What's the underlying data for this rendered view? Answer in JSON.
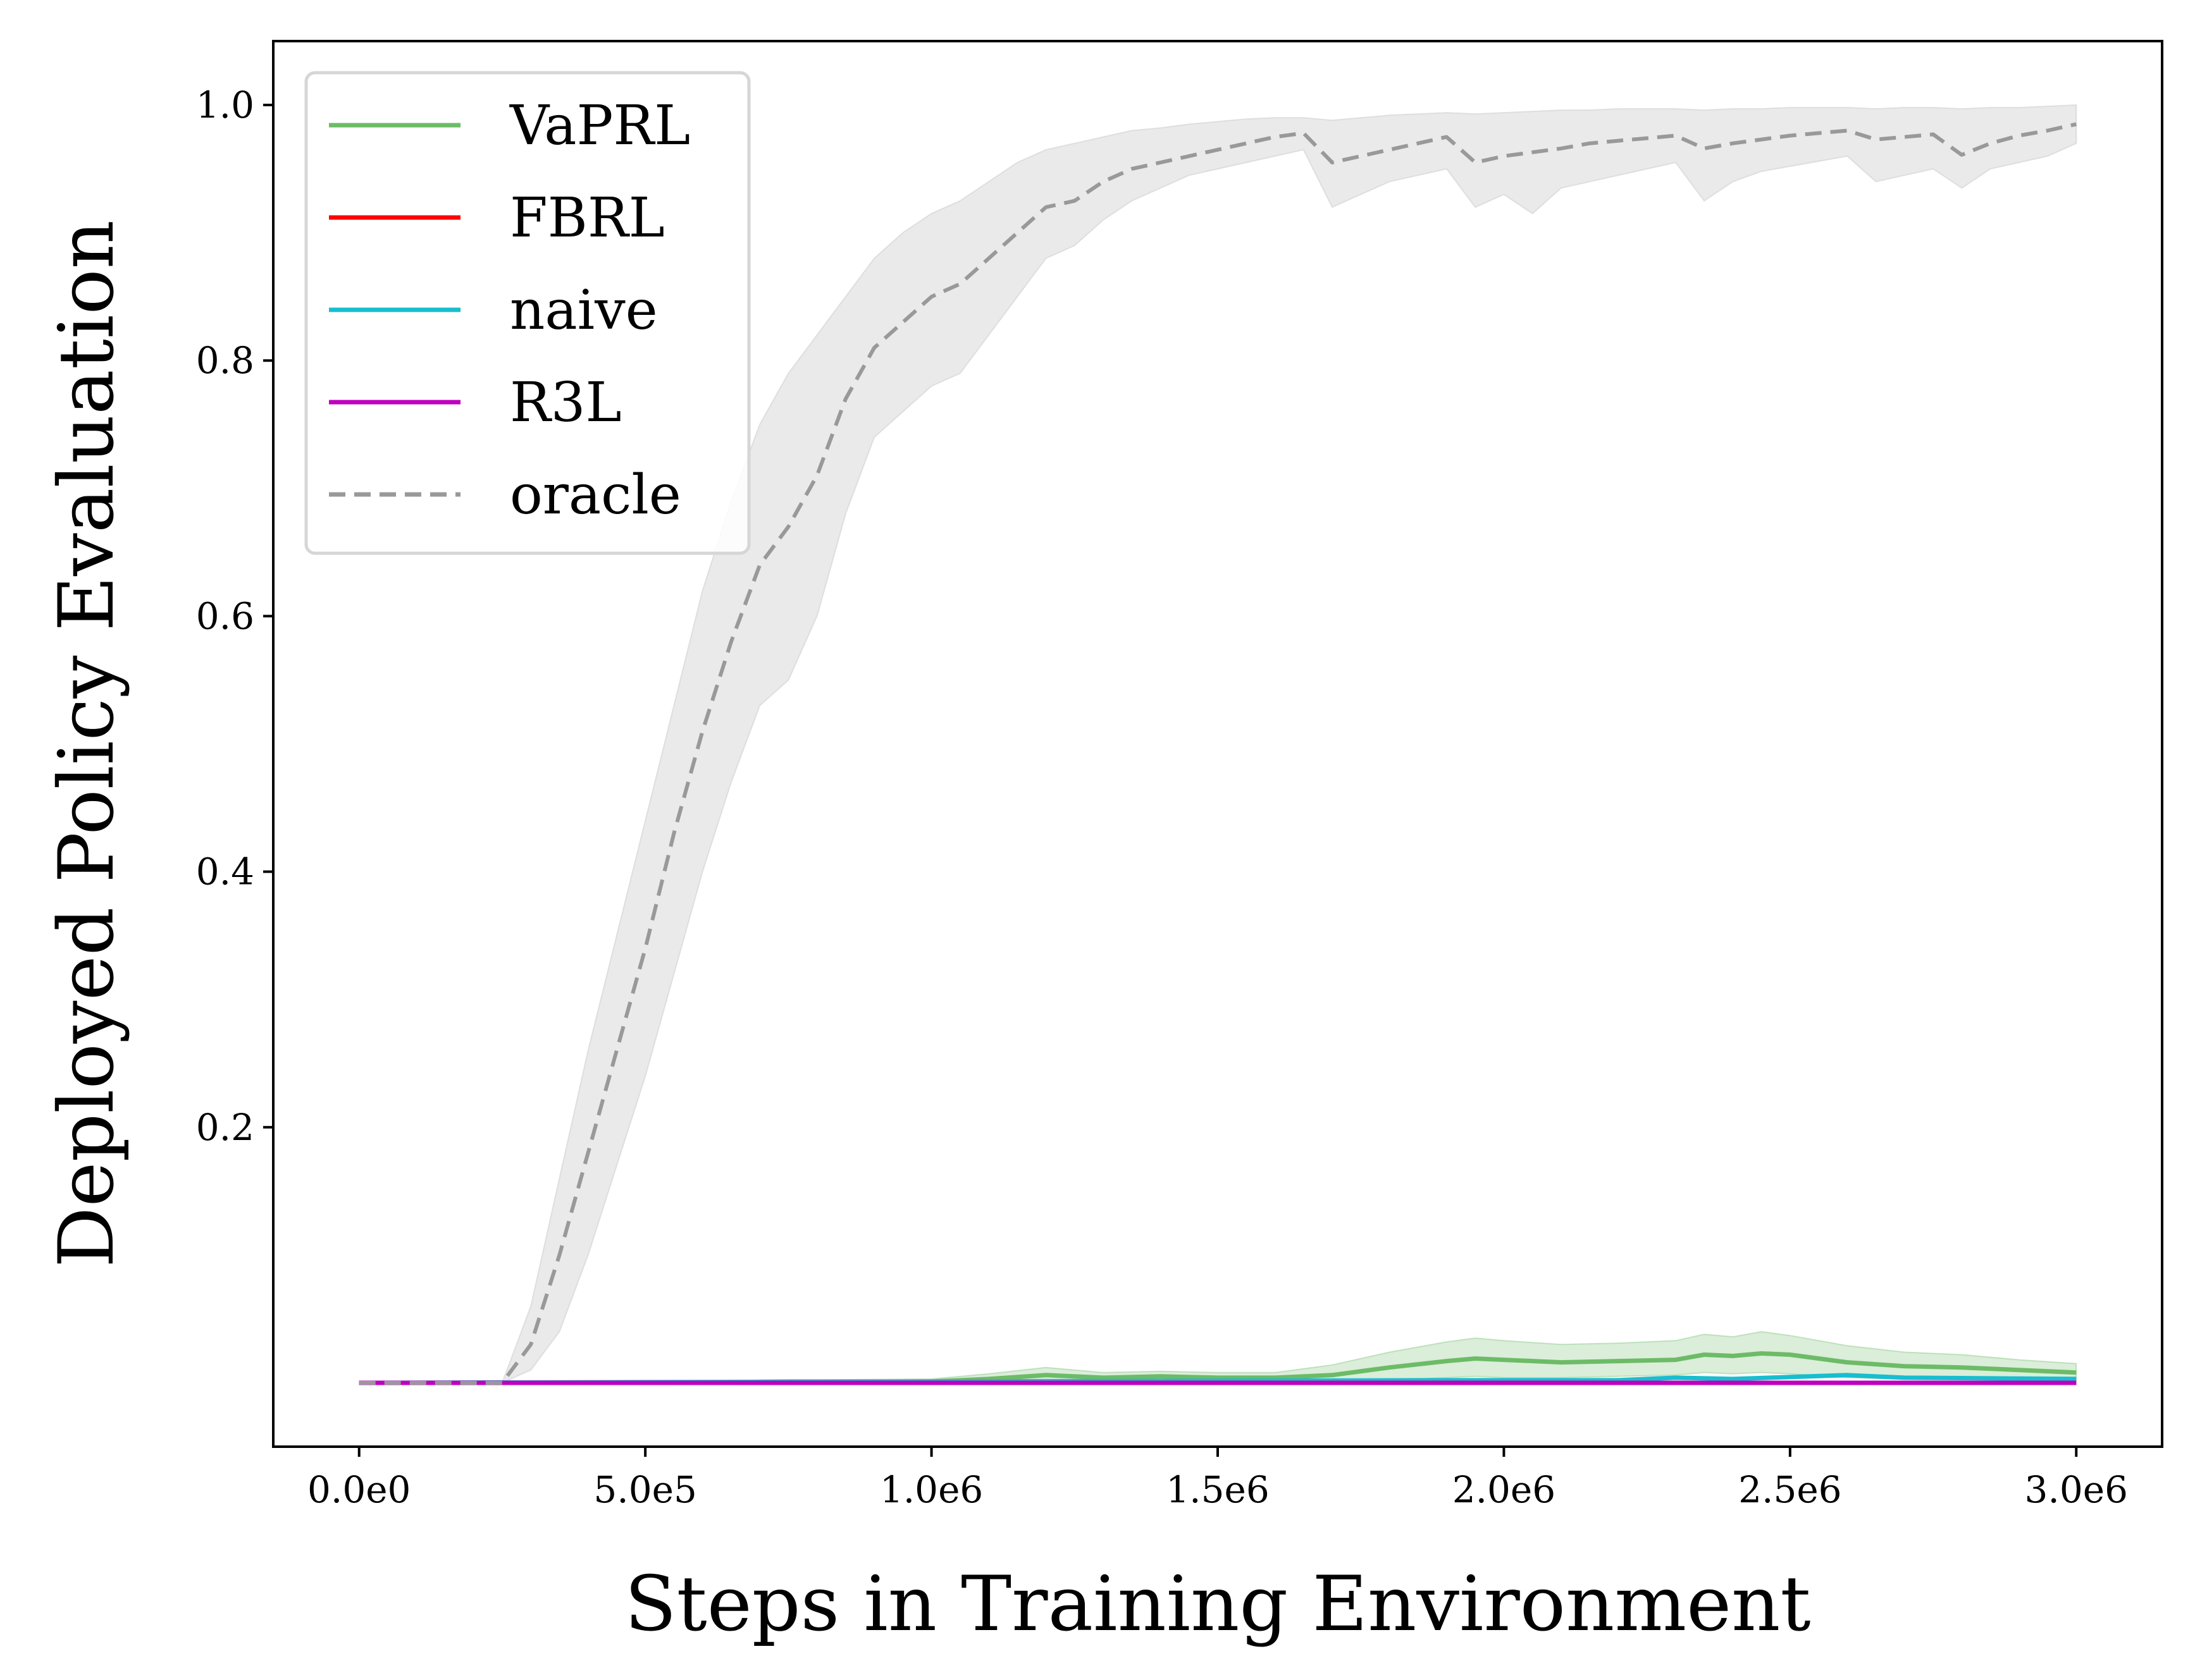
{
  "chart_data": {
    "type": "line",
    "xlabel": "Steps in Training Environment",
    "ylabel": "Deployed Policy Evaluation",
    "xlim": [
      -150000,
      3150000
    ],
    "ylim": [
      -0.05,
      1.05
    ],
    "xticks": [
      0,
      500000,
      1000000,
      1500000,
      2000000,
      2500000,
      3000000
    ],
    "xtick_labels": [
      "0.0e0",
      "5.0e5",
      "1.0e6",
      "1.5e6",
      "2.0e6",
      "2.5e6",
      "3.0e6"
    ],
    "yticks": [
      0.2,
      0.4,
      0.6,
      0.8,
      1.0
    ],
    "ytick_labels": [
      "0.2",
      "0.4",
      "0.6",
      "0.8",
      "1.0"
    ],
    "grid": false,
    "legend_position": "top-left",
    "series": [
      {
        "name": "VaPRL",
        "color": "#6dbb67",
        "style": "solid",
        "x": [
          0,
          250000,
          500000,
          750000,
          1000000,
          1100000,
          1200000,
          1300000,
          1400000,
          1500000,
          1600000,
          1700000,
          1800000,
          1900000,
          1950000,
          2000000,
          2100000,
          2200000,
          2300000,
          2350000,
          2400000,
          2450000,
          2500000,
          2600000,
          2700000,
          2800000,
          2900000,
          3000000
        ],
        "y": [
          0.0,
          0.0,
          0.0,
          0.001,
          0.001,
          0.003,
          0.006,
          0.004,
          0.005,
          0.004,
          0.004,
          0.006,
          0.012,
          0.017,
          0.019,
          0.018,
          0.016,
          0.017,
          0.018,
          0.022,
          0.021,
          0.023,
          0.022,
          0.016,
          0.013,
          0.012,
          0.01,
          0.008
        ],
        "band_upper": [
          0.0,
          0.0,
          0.001,
          0.002,
          0.003,
          0.007,
          0.012,
          0.008,
          0.009,
          0.008,
          0.008,
          0.014,
          0.024,
          0.032,
          0.035,
          0.033,
          0.03,
          0.031,
          0.033,
          0.038,
          0.036,
          0.04,
          0.037,
          0.029,
          0.024,
          0.022,
          0.018,
          0.015
        ],
        "band_lower": [
          0.0,
          0.0,
          0.0,
          0.0,
          0.0,
          0.0,
          0.0,
          0.0,
          0.0,
          0.0,
          0.0,
          0.0,
          0.002,
          0.004,
          0.005,
          0.004,
          0.004,
          0.005,
          0.006,
          0.008,
          0.007,
          0.008,
          0.007,
          0.004,
          0.003,
          0.003,
          0.002,
          0.002
        ]
      },
      {
        "name": "FBRL",
        "color": "#ff0000",
        "style": "solid",
        "x": [
          0,
          3000000
        ],
        "y": [
          0.0,
          0.0
        ]
      },
      {
        "name": "naive",
        "color": "#17becf",
        "style": "solid",
        "x": [
          0,
          1900000,
          2200000,
          2300000,
          2400000,
          2600000,
          2700000,
          3000000
        ],
        "y": [
          0.0,
          0.002,
          0.002,
          0.004,
          0.003,
          0.006,
          0.004,
          0.003
        ]
      },
      {
        "name": "R3L",
        "color": "#bf00bf",
        "style": "solid",
        "x": [
          0,
          3000000
        ],
        "y": [
          0.0,
          0.0
        ]
      },
      {
        "name": "oracle",
        "color": "#999999",
        "style": "dashed",
        "x": [
          0,
          250000,
          300000,
          350000,
          400000,
          450000,
          500000,
          550000,
          600000,
          650000,
          700000,
          750000,
          800000,
          850000,
          900000,
          950000,
          1000000,
          1050000,
          1100000,
          1150000,
          1200000,
          1250000,
          1300000,
          1350000,
          1400000,
          1450000,
          1500000,
          1550000,
          1600000,
          1650000,
          1700000,
          1750000,
          1800000,
          1850000,
          1900000,
          1950000,
          2000000,
          2050000,
          2100000,
          2150000,
          2200000,
          2250000,
          2300000,
          2350000,
          2400000,
          2450000,
          2500000,
          2550000,
          2600000,
          2650000,
          2700000,
          2750000,
          2800000,
          2850000,
          2900000,
          2950000,
          3000000
        ],
        "y": [
          0.0,
          0.0,
          0.03,
          0.1,
          0.18,
          0.26,
          0.34,
          0.43,
          0.51,
          0.58,
          0.64,
          0.67,
          0.71,
          0.77,
          0.81,
          0.83,
          0.85,
          0.86,
          0.88,
          0.9,
          0.92,
          0.925,
          0.94,
          0.95,
          0.955,
          0.96,
          0.965,
          0.97,
          0.975,
          0.978,
          0.955,
          0.96,
          0.965,
          0.97,
          0.975,
          0.955,
          0.96,
          0.963,
          0.966,
          0.97,
          0.972,
          0.974,
          0.976,
          0.966,
          0.97,
          0.973,
          0.976,
          0.978,
          0.98,
          0.973,
          0.975,
          0.977,
          0.961,
          0.97,
          0.976,
          0.98,
          0.985
        ],
        "band_upper": [
          0.0,
          0.0,
          0.06,
          0.16,
          0.26,
          0.35,
          0.44,
          0.53,
          0.62,
          0.69,
          0.75,
          0.79,
          0.82,
          0.85,
          0.88,
          0.9,
          0.915,
          0.925,
          0.94,
          0.955,
          0.965,
          0.97,
          0.975,
          0.98,
          0.982,
          0.985,
          0.987,
          0.989,
          0.99,
          0.99,
          0.988,
          0.99,
          0.992,
          0.993,
          0.994,
          0.993,
          0.994,
          0.995,
          0.996,
          0.996,
          0.997,
          0.997,
          0.997,
          0.996,
          0.997,
          0.997,
          0.998,
          0.998,
          0.998,
          0.997,
          0.998,
          0.998,
          0.997,
          0.998,
          0.998,
          0.999,
          1.0
        ],
        "band_lower": [
          0.0,
          0.0,
          0.01,
          0.04,
          0.1,
          0.17,
          0.24,
          0.32,
          0.4,
          0.47,
          0.53,
          0.55,
          0.6,
          0.68,
          0.74,
          0.76,
          0.78,
          0.79,
          0.82,
          0.85,
          0.88,
          0.89,
          0.91,
          0.925,
          0.935,
          0.945,
          0.95,
          0.955,
          0.96,
          0.965,
          0.92,
          0.93,
          0.94,
          0.945,
          0.95,
          0.92,
          0.93,
          0.915,
          0.935,
          0.94,
          0.945,
          0.95,
          0.955,
          0.925,
          0.94,
          0.948,
          0.952,
          0.956,
          0.96,
          0.94,
          0.945,
          0.95,
          0.935,
          0.95,
          0.955,
          0.96,
          0.97
        ]
      }
    ]
  }
}
